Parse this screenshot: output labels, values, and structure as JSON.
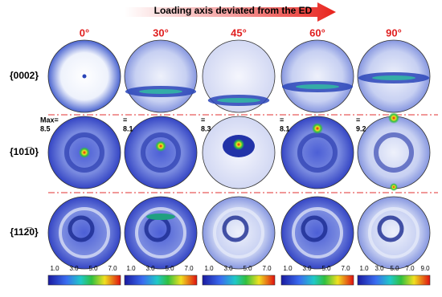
{
  "header": {
    "arrow_label": "Loading axis deviated from the ED"
  },
  "columns": [
    "0°",
    "30°",
    "45°",
    "60°",
    "90°"
  ],
  "rows": [
    "{0002}",
    "{101̅0}",
    "{112̅0}"
  ],
  "max_labels": [
    {
      "prefix": "Max=",
      "value": "8.5"
    },
    {
      "prefix": "=",
      "value": "8.1"
    },
    {
      "prefix": "=",
      "value": "8.3"
    },
    {
      "prefix": "=",
      "value": "8.1"
    },
    {
      "prefix": "=",
      "value": "9.2"
    }
  ],
  "colorbars": [
    [
      "1.0",
      "3.0",
      "5.0",
      "7.0"
    ],
    [
      "1.0",
      "3.0",
      "5.0",
      "7.0"
    ],
    [
      "1.0",
      "3.0",
      "5.0",
      "7.0"
    ],
    [
      "1.0",
      "3.0",
      "5.0",
      "7.0"
    ],
    [
      "1.0",
      "3.0",
      "5.0",
      "7.0",
      "9.0"
    ]
  ]
}
